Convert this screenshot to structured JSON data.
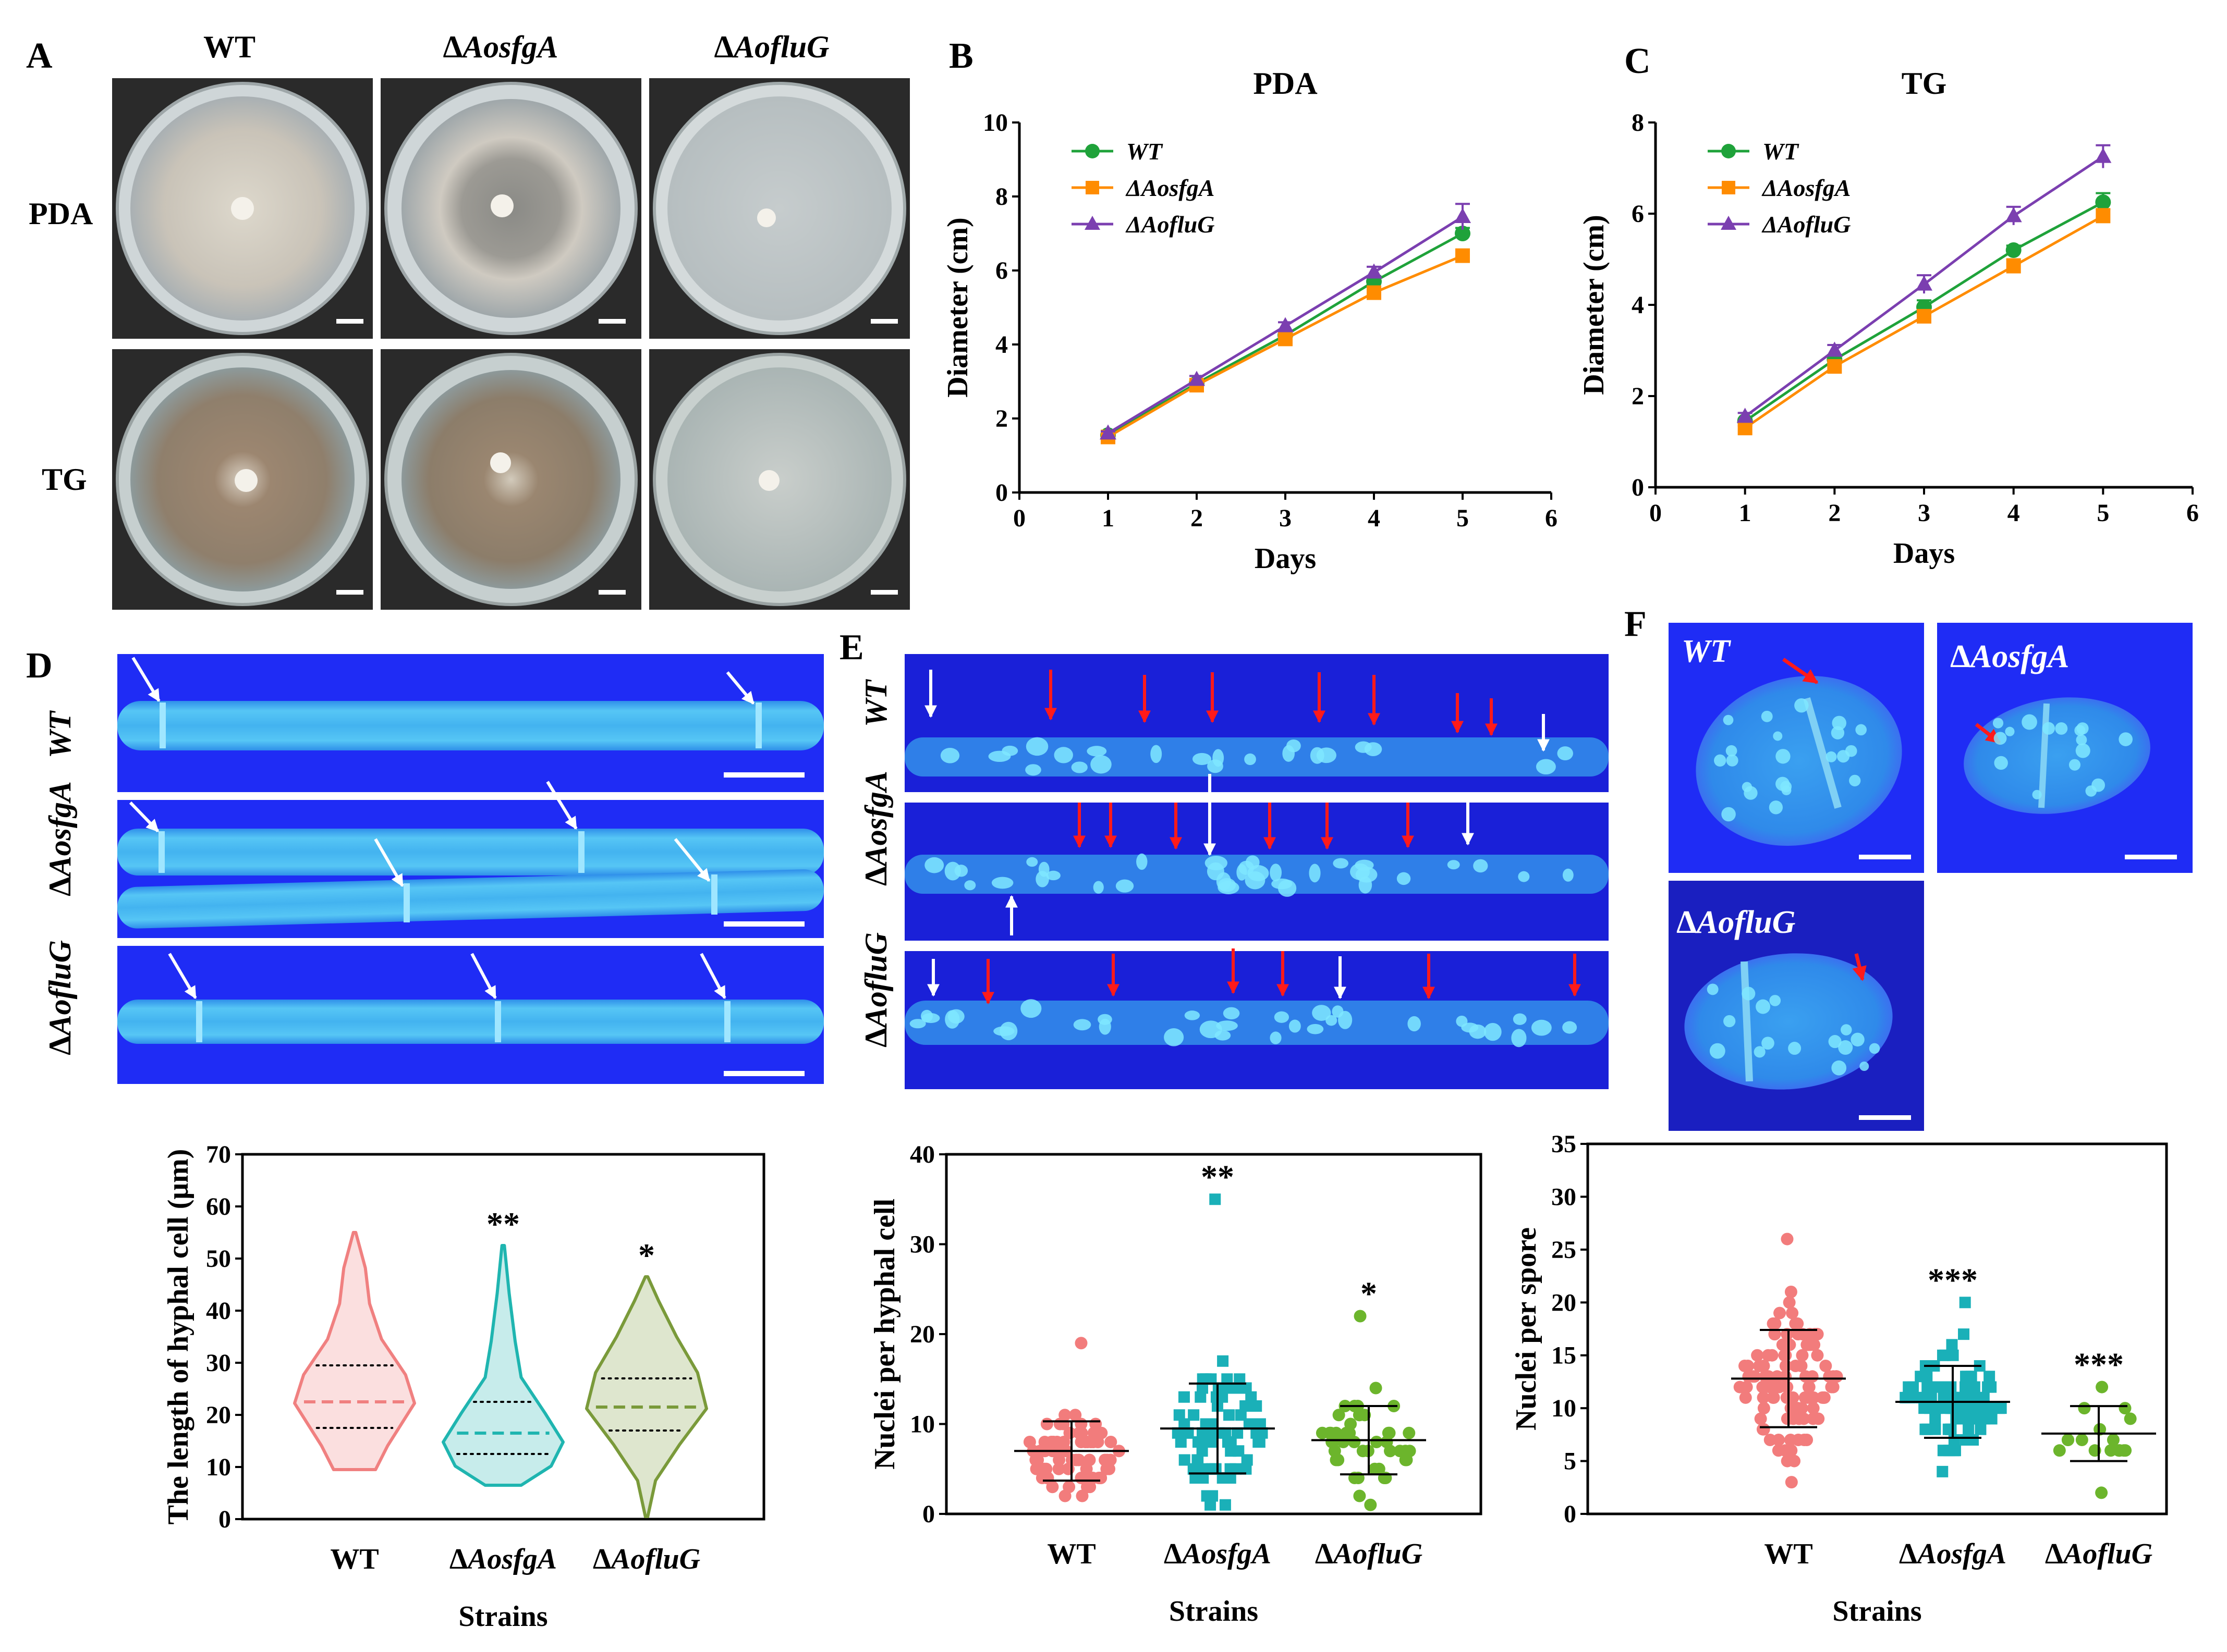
{
  "panels": {
    "A": "A",
    "B": "B",
    "C": "C",
    "D": "D",
    "E": "E",
    "F": "F"
  },
  "strains": {
    "wt": "WT",
    "sfg_prefix": "Δ",
    "sfg_name": "AosfgA",
    "flu_prefix": "Δ",
    "flu_name": "AofluG"
  },
  "media": {
    "pda": "PDA",
    "tg": "TG"
  },
  "colors": {
    "wt": "#1fa23a",
    "sfg": "#ff8c00",
    "flu": "#7b3fb0",
    "wt_violin": "#f08080",
    "sfg_violin": "#1fb5b0",
    "flu_violin": "#7a9a3a",
    "pt_wt": "#f27c7c",
    "pt_sfg": "#1ab0b8",
    "pt_flu": "#6cb52c",
    "fluor_bg": "#1a2bff",
    "hypha": "#3ab4f2"
  },
  "chart_data": [
    {
      "id": "B",
      "type": "line",
      "title": "PDA",
      "xlabel": "Days",
      "ylabel": "Diameter (cm)",
      "xlim": [
        0,
        6
      ],
      "ylim": [
        0,
        10
      ],
      "xticks": [
        0,
        1,
        2,
        3,
        4,
        5,
        6
      ],
      "yticks": [
        0,
        2,
        4,
        6,
        8,
        10
      ],
      "x": [
        1,
        2,
        3,
        4,
        5
      ],
      "series": [
        {
          "name": "WT",
          "values": [
            1.55,
            2.95,
            4.25,
            5.7,
            7.0
          ],
          "err": [
            0.05,
            0.08,
            0.1,
            0.15,
            0.15
          ]
        },
        {
          "name": "ΔAosfgA",
          "values": [
            1.5,
            2.9,
            4.15,
            5.4,
            6.4
          ],
          "err": [
            0.05,
            0.08,
            0.1,
            0.1,
            0.12
          ]
        },
        {
          "name": "ΔAofluG",
          "values": [
            1.6,
            3.05,
            4.5,
            5.95,
            7.45
          ],
          "err": [
            0.05,
            0.1,
            0.1,
            0.15,
            0.35
          ]
        }
      ]
    },
    {
      "id": "C",
      "type": "line",
      "title": "TG",
      "xlabel": "Days",
      "ylabel": "Diameter (cm)",
      "xlim": [
        0,
        6
      ],
      "ylim": [
        0,
        8
      ],
      "xticks": [
        0,
        1,
        2,
        3,
        4,
        5,
        6
      ],
      "yticks": [
        0,
        2,
        4,
        6,
        8
      ],
      "x": [
        1,
        2,
        3,
        4,
        5
      ],
      "series": [
        {
          "name": "WT",
          "values": [
            1.45,
            2.8,
            3.95,
            5.2,
            6.25
          ],
          "err": [
            0.05,
            0.1,
            0.15,
            0.1,
            0.2
          ]
        },
        {
          "name": "ΔAosfgA",
          "values": [
            1.3,
            2.65,
            3.75,
            4.85,
            5.95
          ],
          "err": [
            0.05,
            0.08,
            0.1,
            0.15,
            0.15
          ]
        },
        {
          "name": "ΔAofluG",
          "values": [
            1.55,
            3.0,
            4.45,
            5.95,
            7.25
          ],
          "err": [
            0.08,
            0.12,
            0.2,
            0.2,
            0.25
          ]
        }
      ]
    },
    {
      "id": "D",
      "type": "violin",
      "xlabel": "Strains",
      "ylabel": "The length of hyphal cell (μm)",
      "ylim": [
        0,
        70
      ],
      "yticks": [
        0,
        10,
        20,
        30,
        40,
        50,
        60,
        70
      ],
      "groups": [
        {
          "name": "WT",
          "min": 9.5,
          "max": 55,
          "median": 22.5,
          "q1": 17.5,
          "q3": 29.5,
          "sig": ""
        },
        {
          "name": "ΔAosfgA",
          "min": 6.5,
          "max": 52.5,
          "median": 16.5,
          "q1": 12.5,
          "q3": 22.5,
          "sig": "**"
        },
        {
          "name": "ΔAofluG",
          "min": 0.5,
          "max": 46.5,
          "median": 21.5,
          "q1": 17,
          "q3": 27,
          "sig": "*"
        }
      ]
    },
    {
      "id": "E",
      "type": "scatter",
      "xlabel": "Strains",
      "ylabel": "Nuclei per hyphal cell",
      "ylim": [
        0,
        40
      ],
      "yticks": [
        0,
        10,
        20,
        30,
        40
      ],
      "groups": [
        {
          "name": "WT",
          "mean": 7.0,
          "sd": 3.3,
          "min": 2,
          "max": 19,
          "sig": "",
          "n": 70
        },
        {
          "name": "ΔAosfgA",
          "mean": 9.5,
          "sd": 5.0,
          "min": 1,
          "max": 35,
          "sig": "**",
          "n": 80
        },
        {
          "name": "ΔAofluG",
          "mean": 8.2,
          "sd": 3.8,
          "min": 1,
          "max": 22,
          "sig": "*",
          "n": 45
        }
      ]
    },
    {
      "id": "F",
      "type": "scatter",
      "xlabel": "Strains",
      "ylabel": "Nuclei per spore",
      "ylim": [
        0,
        35
      ],
      "yticks": [
        0,
        5,
        10,
        15,
        20,
        25,
        30,
        35
      ],
      "groups": [
        {
          "name": "WT",
          "mean": 12.8,
          "sd": 4.6,
          "min": 3,
          "max": 26,
          "sig": "",
          "n": 110
        },
        {
          "name": "ΔAosfgA",
          "mean": 10.6,
          "sd": 3.4,
          "min": 4,
          "max": 20,
          "sig": "***",
          "n": 95
        },
        {
          "name": "ΔAofluG",
          "mean": 7.6,
          "sd": 2.6,
          "min": 2,
          "max": 12,
          "sig": "***",
          "n": 18
        }
      ]
    }
  ]
}
